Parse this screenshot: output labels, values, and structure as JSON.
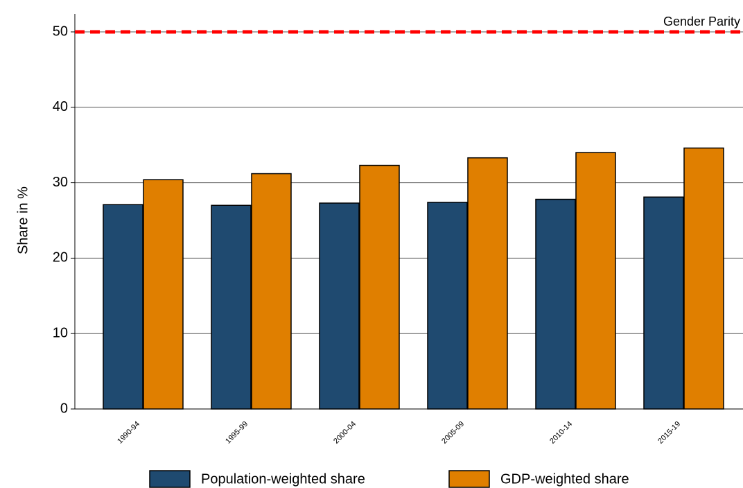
{
  "chart_data": {
    "type": "bar",
    "ylabel": "Share in %",
    "categories": [
      "1990-94",
      "1995-99",
      "2000-04",
      "2005-09",
      "2010-14",
      "2015-19"
    ],
    "series": [
      {
        "name": "Population-weighted share",
        "color": "#1f4a70",
        "values": [
          27.1,
          27.0,
          27.3,
          27.4,
          27.8,
          28.1
        ]
      },
      {
        "name": "GDP-weighted share",
        "color": "#e07f00",
        "values": [
          30.4,
          31.2,
          32.3,
          33.3,
          34.0,
          34.6
        ]
      }
    ],
    "ylim": [
      0,
      50
    ],
    "yticks": [
      0,
      10,
      20,
      30,
      40,
      50
    ],
    "grid": true,
    "reference_line": {
      "value": 50,
      "label": "Gender Parity",
      "color": "#ff0000"
    },
    "legend": "bottom"
  }
}
